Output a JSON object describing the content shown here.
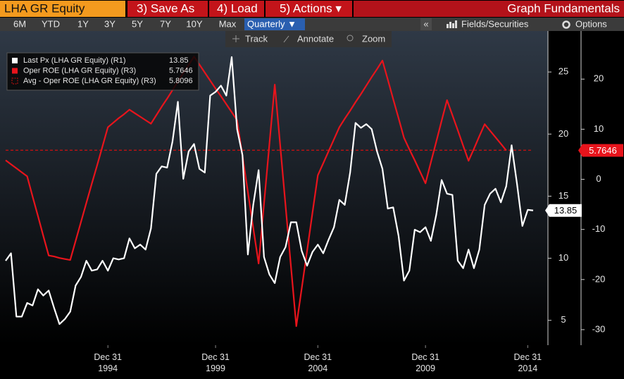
{
  "toolbar": {
    "security": "LHA GR Equity",
    "buttons": [
      "3) Save As",
      "4) Load",
      "5) Actions ▾"
    ],
    "title": "Graph Fundamentals",
    "periods": [
      "6M",
      "YTD",
      "1Y",
      "3Y",
      "5Y",
      "7Y",
      "10Y",
      "Max"
    ],
    "frequency": "Quarterly ▼",
    "collapse": "«",
    "fields": "Fields/Securities",
    "options": "Options",
    "tools": [
      "Track",
      "Annotate",
      "Zoom"
    ]
  },
  "chart_data": {
    "type": "line",
    "categories": [
      null,
      null,
      null,
      null,
      null,
      null,
      null,
      null,
      null,
      null,
      null,
      null,
      null,
      null,
      null,
      null,
      null,
      null,
      null,
      "Dec 31\n1994",
      null,
      null,
      null,
      null,
      null,
      null,
      null,
      null,
      null,
      null,
      null,
      null,
      null,
      null,
      null,
      null,
      null,
      null,
      null,
      "Dec 31\n1999",
      null,
      null,
      null,
      null,
      null,
      null,
      null,
      null,
      null,
      null,
      null,
      null,
      null,
      null,
      null,
      null,
      null,
      null,
      "Dec 31\n2004",
      null,
      null,
      null,
      null,
      null,
      null,
      null,
      null,
      null,
      null,
      null,
      null,
      null,
      null,
      null,
      null,
      null,
      null,
      null,
      "Dec 31\n2009",
      null,
      null,
      null,
      null,
      null,
      null,
      null,
      null,
      null,
      null,
      null,
      null,
      null,
      null,
      null,
      null,
      null,
      null,
      "Dec 31\n2014",
      null
    ],
    "series": [
      {
        "name": "Last Px (LHA GR Equity) (R1)",
        "color": "#ffffff",
        "axis": "y",
        "values": [
          9.8,
          10.4,
          5.3,
          5.3,
          6.4,
          6.2,
          7.5,
          7.0,
          7.4,
          6.0,
          4.7,
          5.1,
          5.7,
          7.8,
          8.5,
          9.8,
          9.0,
          9.1,
          9.8,
          9.0,
          10.0,
          9.9,
          10.0,
          11.6,
          10.8,
          11.1,
          10.7,
          12.4,
          16.8,
          17.4,
          17.3,
          19.4,
          22.6,
          16.4,
          18.6,
          19.2,
          17.2,
          16.9,
          23.1,
          23.4,
          23.9,
          23.1,
          26.2,
          20.4,
          18.3,
          10.3,
          14.3,
          17.1,
          10.1,
          8.7,
          8.0,
          10.1,
          10.9,
          12.9,
          12.9,
          10.6,
          9.4,
          10.5,
          11.1,
          10.4,
          11.5,
          12.5,
          14.7,
          14.3,
          16.9,
          20.9,
          20.5,
          20.8,
          20.4,
          18.6,
          17.2,
          14.0,
          14.1,
          11.8,
          8.2,
          9.0,
          12.3,
          12.1,
          12.5,
          11.4,
          13.5,
          16.3,
          15.2,
          15.1,
          9.8,
          9.2,
          10.7,
          9.2,
          10.7,
          14.3,
          15.2,
          15.6,
          14.5,
          15.8,
          19.1,
          16.0,
          12.6,
          13.9,
          13.85
        ]
      },
      {
        "name": "Oper ROE (LHA GR Equity) (R3)",
        "color": "#e8141c",
        "axis": "y2",
        "values": [
          3.8,
          3.0,
          2.2,
          1.4,
          0.6,
          -3.4,
          -7.3,
          -11.3,
          -15.2,
          -15.4,
          -15.7,
          -15.9,
          -16.1,
          -12.3,
          -8.5,
          -4.7,
          -0.9,
          2.8,
          6.6,
          10.4,
          11.3,
          12.2,
          13.0,
          13.9,
          13.2,
          12.5,
          11.8,
          11.1,
          12.8,
          14.5,
          16.1,
          17.8,
          19.5,
          21.2,
          22.8,
          24.5,
          22.9,
          21.3,
          19.7,
          18.1,
          16.6,
          15.0,
          13.4,
          11.8,
          4.7,
          -2.5,
          -9.7,
          -16.8,
          -4.9,
          7.0,
          18.9,
          6.9,
          -5.2,
          -17.3,
          -29.3,
          -21.8,
          -14.3,
          -6.7,
          0.8,
          3.2,
          5.6,
          8.0,
          10.4,
          12.1,
          13.7,
          15.4,
          17.0,
          18.7,
          20.4,
          22.0,
          23.7,
          19.9,
          16.0,
          12.2,
          8.3,
          6.0,
          3.8,
          1.5,
          -0.8,
          3.4,
          7.5,
          11.7,
          15.8,
          12.8,
          9.8,
          6.7,
          3.7,
          6.1,
          8.6,
          11.0,
          9.7,
          8.4,
          7.1,
          5.7646,
          null,
          null,
          null,
          null,
          null
        ]
      }
    ],
    "reference_lines": [
      {
        "name": "Avg - Oper ROE (LHA GR Equity) (R3)",
        "value": 5.8096,
        "axis": "y2",
        "color": "#d01010",
        "dashed": true
      }
    ],
    "ylim": [
      3,
      28.3
    ],
    "yticks": [
      5,
      10,
      15,
      20,
      25
    ],
    "y2lim": [
      -33.1,
      29.6
    ],
    "y2ticks": [
      -30,
      -20,
      -10,
      0,
      10,
      20
    ],
    "legend": "upper left"
  }
}
